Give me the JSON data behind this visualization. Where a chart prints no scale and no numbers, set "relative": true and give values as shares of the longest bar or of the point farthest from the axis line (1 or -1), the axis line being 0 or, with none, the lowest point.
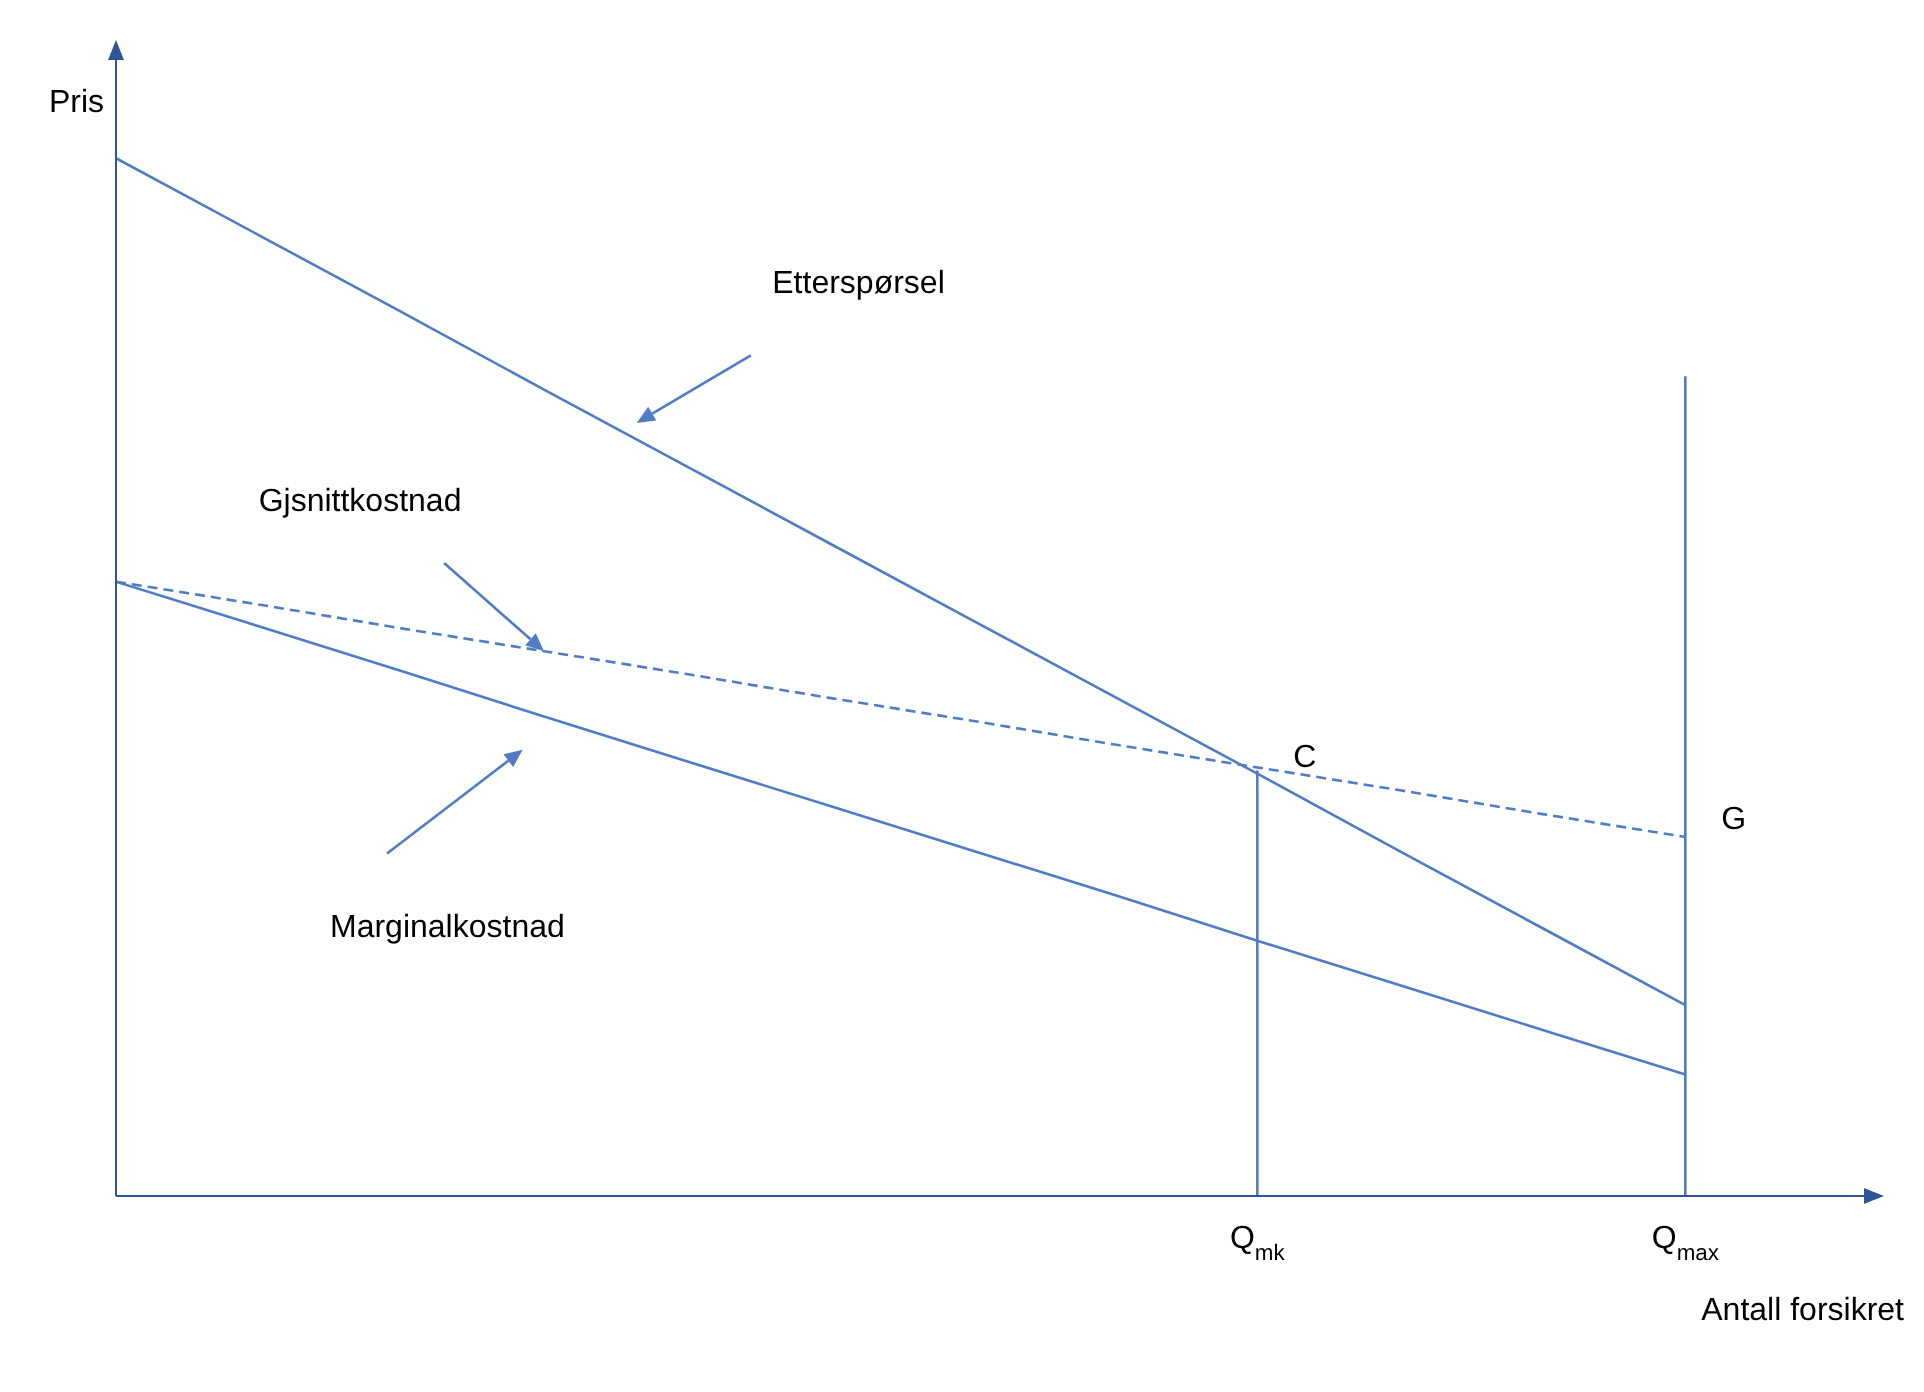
{
  "chart_data": {
    "type": "line",
    "relative": true,
    "legend": false,
    "grid": false,
    "marker": "none",
    "xlabel": "Antall forsikret",
    "ylabel": "Pris",
    "categories": [
      null,
      null,
      null,
      null,
      null,
      null,
      null,
      null,
      "Q$_{mk}$",
      null,
      null,
      "Q$_{max}$",
      null
    ],
    "series": [
      {
        "color": "#4f7cc4",
        "line_style": "solid",
        "values": [
          1,
          0.926,
          0.852,
          0.777,
          0.703,
          0.629,
          0.555,
          0.481,
          0.407,
          0.332,
          0.258,
          0.184,
          null
        ]
      },
      {
        "color": "#4f7cc4",
        "line_style": "dashed",
        "values": [
          0.592,
          0.57,
          0.547,
          0.525,
          0.503,
          0.48,
          0.458,
          0.435,
          0.413,
          0.391,
          0.368,
          0.346,
          null
        ]
      },
      {
        "color": "#4f7cc4",
        "line_style": "solid",
        "values": [
          0.592,
          0.549,
          0.506,
          0.462,
          0.419,
          0.376,
          0.333,
          0.29,
          0.246,
          0.203,
          0.16,
          0.117,
          null
        ]
      },
      {
        "color": "#4f7cc4",
        "line_style": "solid",
        "x": [
          "Q$_{mk}$",
          "Q$_{mk}$"
        ],
        "values": [
          0,
          0.41
        ]
      },
      {
        "color": "#4f7cc4",
        "line_style": "solid",
        "x": [
          "Q$_{max}$",
          "Q$_{max}$"
        ],
        "values": [
          0,
          0.79
        ]
      }
    ],
    "annotations": [
      "Etterspørsel",
      "Gjsnittkostnad",
      "Marginalkostnad",
      {
        "text": "C",
        "x": "Q$_{mk}$",
        "y": 0.41
      },
      {
        "text": "G",
        "x": "Q$_{max}$",
        "y": 0.35
      }
    ]
  }
}
